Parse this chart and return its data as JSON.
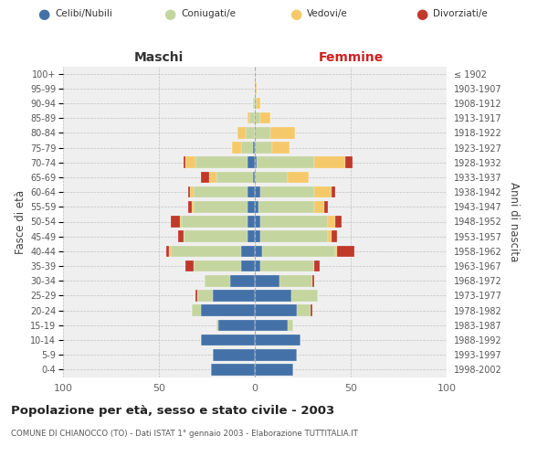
{
  "age_groups": [
    "0-4",
    "5-9",
    "10-14",
    "15-19",
    "20-24",
    "25-29",
    "30-34",
    "35-39",
    "40-44",
    "45-49",
    "50-54",
    "55-59",
    "60-64",
    "65-69",
    "70-74",
    "75-79",
    "80-84",
    "85-89",
    "90-94",
    "95-99",
    "100+"
  ],
  "birth_years": [
    "1998-2002",
    "1993-1997",
    "1988-1992",
    "1983-1987",
    "1978-1982",
    "1973-1977",
    "1968-1972",
    "1963-1967",
    "1958-1962",
    "1953-1957",
    "1948-1952",
    "1943-1947",
    "1938-1942",
    "1933-1937",
    "1928-1932",
    "1923-1927",
    "1918-1922",
    "1913-1917",
    "1908-1912",
    "1903-1907",
    "≤ 1902"
  ],
  "colors": {
    "celibi": "#4472a8",
    "coniugati": "#c5d5a0",
    "vedovi": "#f5c96a",
    "divorziati": "#c0392b"
  },
  "maschi": {
    "celibi": [
      23,
      22,
      28,
      19,
      28,
      22,
      13,
      7,
      7,
      4,
      4,
      4,
      4,
      1,
      4,
      1,
      0,
      0,
      0,
      0,
      0
    ],
    "coniugati": [
      0,
      0,
      0,
      1,
      5,
      8,
      13,
      25,
      37,
      33,
      34,
      28,
      28,
      19,
      27,
      6,
      5,
      3,
      1,
      0,
      0
    ],
    "vedovi": [
      0,
      0,
      0,
      0,
      0,
      0,
      0,
      0,
      1,
      0,
      1,
      1,
      2,
      4,
      5,
      5,
      4,
      1,
      0,
      0,
      0
    ],
    "divorziati": [
      0,
      0,
      0,
      0,
      0,
      1,
      0,
      4,
      1,
      3,
      5,
      2,
      1,
      4,
      1,
      0,
      0,
      0,
      0,
      0,
      0
    ]
  },
  "femmine": {
    "celibi": [
      20,
      22,
      24,
      17,
      22,
      19,
      13,
      3,
      4,
      3,
      3,
      2,
      3,
      0,
      1,
      0,
      0,
      0,
      0,
      0,
      0
    ],
    "coniugati": [
      0,
      0,
      0,
      3,
      7,
      14,
      17,
      28,
      38,
      35,
      35,
      29,
      28,
      17,
      30,
      9,
      8,
      3,
      1,
      0,
      0
    ],
    "vedovi": [
      0,
      0,
      0,
      0,
      0,
      0,
      0,
      0,
      1,
      2,
      4,
      5,
      9,
      11,
      16,
      9,
      13,
      5,
      2,
      1,
      0
    ],
    "divorziati": [
      0,
      0,
      0,
      0,
      1,
      0,
      1,
      3,
      9,
      3,
      3,
      2,
      2,
      0,
      4,
      0,
      0,
      0,
      0,
      0,
      0
    ]
  },
  "xlim": 100,
  "title": "Popolazione per età, sesso e stato civile - 2003",
  "subtitle": "COMUNE DI CHIANOCCO (TO) - Dati ISTAT 1° gennaio 2003 - Elaborazione TUTTITALIA.IT",
  "ylabel_left": "Fasce di età",
  "ylabel_right": "Anni di nascita",
  "xlabel_maschi": "Maschi",
  "xlabel_femmine": "Femmine",
  "legend_labels": [
    "Celibi/Nubili",
    "Coniugati/e",
    "Vedovi/e",
    "Divorziati/e"
  ],
  "bg_color": "#efefef",
  "grid_color": "#cccccc"
}
